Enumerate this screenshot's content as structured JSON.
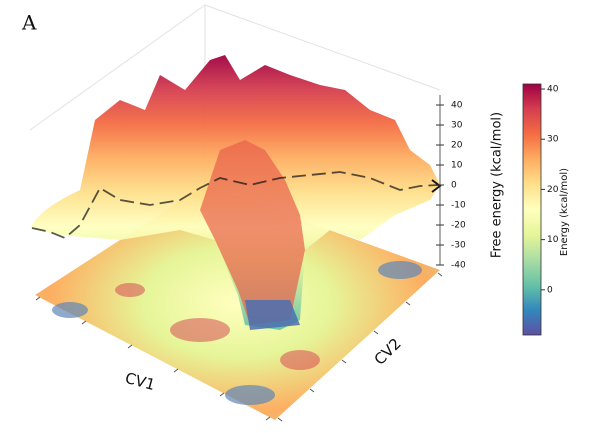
{
  "panel_label": "A",
  "chart_data": {
    "type": "surface3d",
    "x_label": "CV1",
    "y_label": "CV2",
    "z_label": "Free energy (kcal/mol)",
    "zlim": [
      -40,
      45
    ],
    "zticks": [
      -40,
      -30,
      -20,
      -10,
      0,
      10,
      20,
      30,
      40
    ],
    "colormap": [
      "#5e4fa2",
      "#3288bd",
      "#66c2a5",
      "#abdda4",
      "#e6f598",
      "#ffffbf",
      "#fee08b",
      "#fdae61",
      "#f46d43",
      "#d53e4f",
      "#9e0142"
    ],
    "colorbar": {
      "label": "Energy (kcal/mol)",
      "lim": [
        -9,
        41
      ],
      "ticks": [
        0,
        10,
        20,
        30,
        40
      ]
    }
  }
}
